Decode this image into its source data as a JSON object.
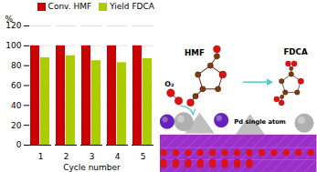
{
  "chart_data": {
    "type": "bar",
    "categories": [
      1,
      2,
      3,
      4,
      5
    ],
    "series": [
      {
        "name": "Conv. HMF",
        "color": "#cc0000",
        "values": [
          100,
          100,
          100,
          100,
          100
        ]
      },
      {
        "name": "Yield FDCA",
        "color": "#aacc00",
        "values": [
          88,
          90,
          85,
          83,
          87
        ]
      }
    ],
    "xlabel": "Cycle number",
    "ylabel": "%",
    "ylim": [
      0,
      120
    ],
    "yticks": [
      0,
      20,
      40,
      60,
      80,
      100,
      120
    ],
    "grid": true,
    "legend": "upper right",
    "annotations": [
      "HMF",
      "FDCA",
      "Pd single atom",
      "O₂"
    ]
  }
}
